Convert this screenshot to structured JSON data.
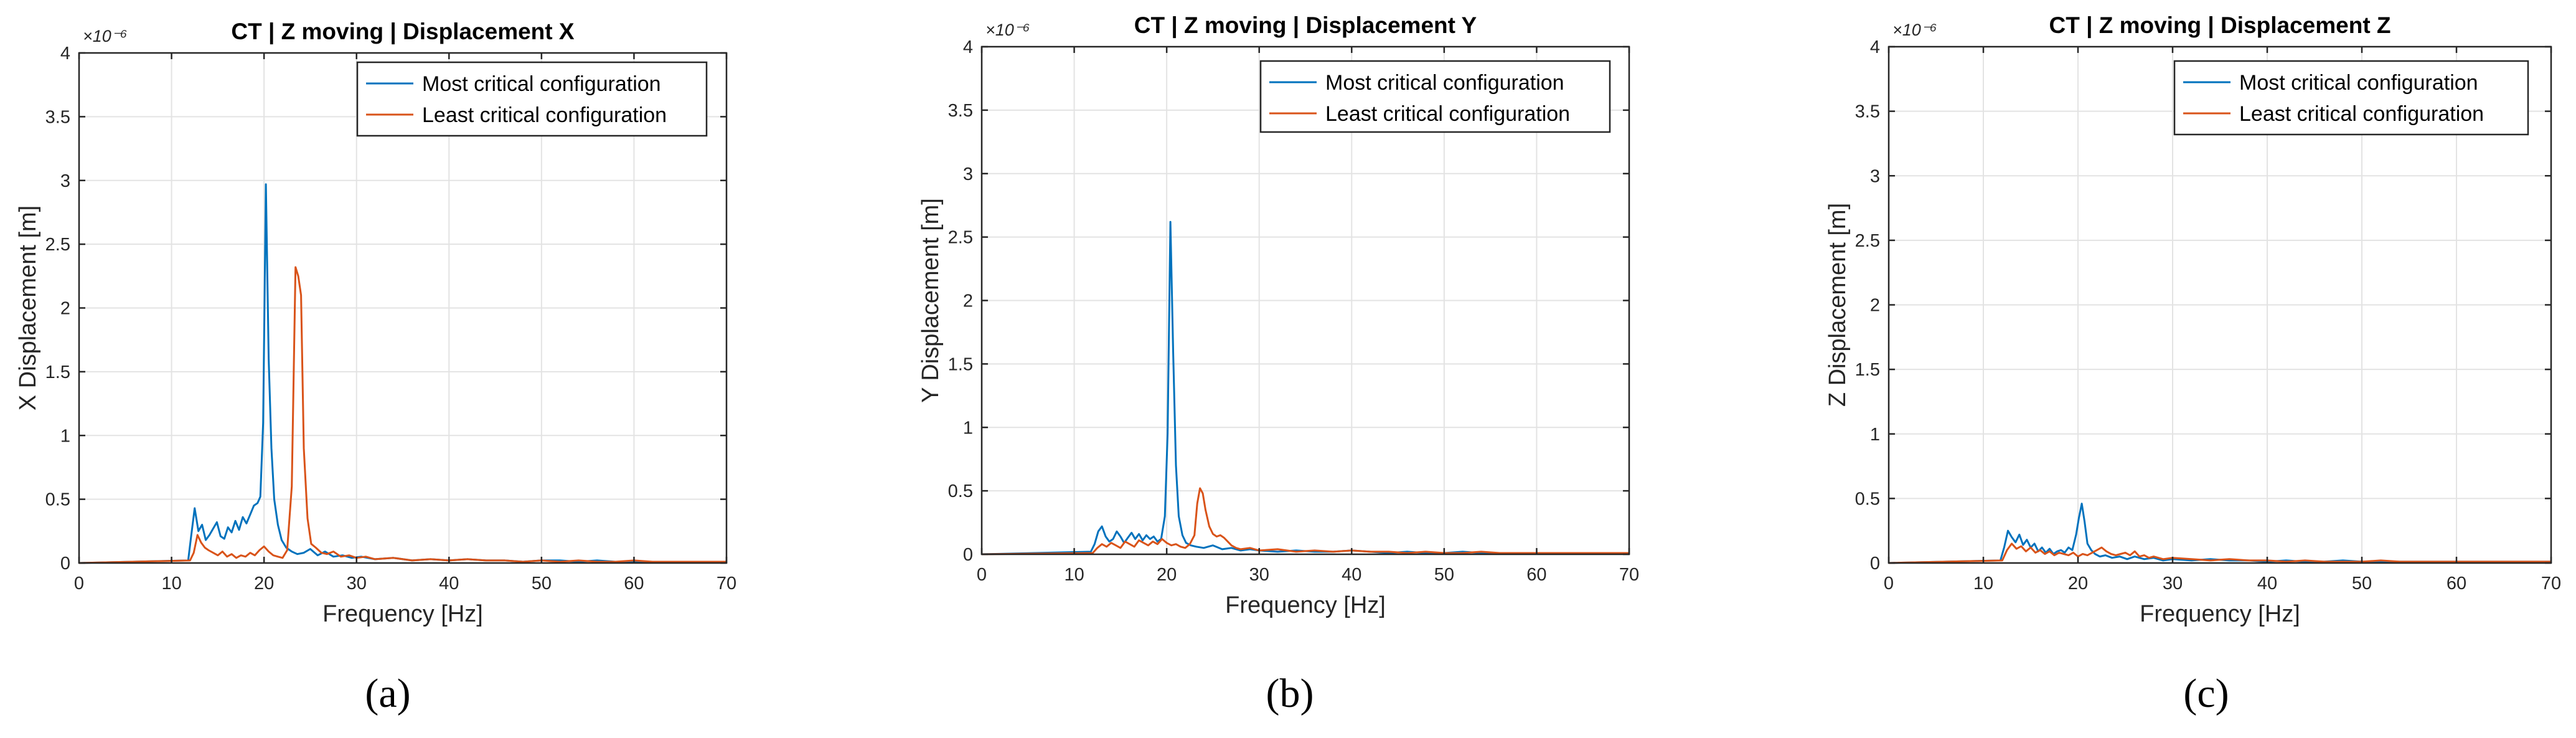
{
  "figure": {
    "panel_labels": [
      "(a)",
      "(b)",
      "(c)"
    ],
    "series_colors": [
      "#0072BD",
      "#D95319"
    ],
    "grid_color": "#e3e3e3",
    "axis_color": "#262626"
  },
  "chart_data": [
    {
      "type": "line",
      "title": "CT | Z moving | Displacement X",
      "xlabel": "Frequency [Hz]",
      "ylabel": "X Displacement [m]",
      "exponent_label": "×10⁻⁶",
      "xlim": [
        0,
        70
      ],
      "ylim": [
        0,
        4
      ],
      "xticks": [
        0,
        10,
        20,
        30,
        40,
        50,
        60,
        70
      ],
      "yticks": [
        0,
        0.5,
        1,
        1.5,
        2,
        2.5,
        3,
        3.5,
        4
      ],
      "ytick_labels": [
        "0",
        "0.5",
        "1",
        "1.5",
        "2",
        "2.5",
        "3",
        "3.5",
        "4"
      ],
      "grid": true,
      "legend": "top-right",
      "series": [
        {
          "name": "Most critical configuration",
          "x": [
            0,
            11.8,
            12.1,
            12.5,
            12.9,
            13.3,
            13.7,
            14.1,
            14.5,
            14.9,
            15.3,
            15.7,
            16.1,
            16.5,
            16.9,
            17.3,
            17.7,
            18.1,
            18.5,
            18.9,
            19.3,
            19.6,
            19.9,
            20.2,
            20.5,
            20.8,
            21.1,
            21.5,
            21.9,
            22.4,
            23.0,
            23.6,
            24.3,
            25.0,
            25.8,
            26.6,
            27.5,
            28.5,
            29.5,
            30.5,
            32,
            34,
            36,
            38,
            40,
            42,
            44,
            46,
            48,
            50,
            52,
            54,
            56,
            58,
            60,
            62,
            64,
            66,
            68,
            70
          ],
          "y": [
            0,
            0.02,
            0.2,
            0.43,
            0.25,
            0.3,
            0.18,
            0.22,
            0.27,
            0.32,
            0.21,
            0.19,
            0.28,
            0.24,
            0.33,
            0.26,
            0.36,
            0.31,
            0.38,
            0.45,
            0.47,
            0.52,
            1.1,
            2.97,
            1.6,
            0.9,
            0.5,
            0.3,
            0.18,
            0.12,
            0.09,
            0.07,
            0.08,
            0.11,
            0.06,
            0.09,
            0.05,
            0.06,
            0.04,
            0.05,
            0.03,
            0.04,
            0.02,
            0.03,
            0.02,
            0.03,
            0.02,
            0.02,
            0.01,
            0.02,
            0.02,
            0.01,
            0.02,
            0.01,
            0.01,
            0.01,
            0.01,
            0.01,
            0.01,
            0.01
          ]
        },
        {
          "name": "Least critical configuration",
          "x": [
            0,
            12.0,
            12.4,
            12.8,
            13.2,
            13.6,
            14.0,
            14.5,
            15.0,
            15.5,
            16.0,
            16.5,
            17.0,
            17.5,
            18.0,
            18.5,
            19.0,
            19.5,
            20.0,
            20.5,
            21.0,
            21.5,
            22.0,
            22.5,
            23.0,
            23.4,
            23.7,
            24.0,
            24.3,
            24.7,
            25.1,
            25.6,
            26.2,
            26.8,
            27.5,
            28.3,
            29.2,
            30.0,
            31,
            32,
            34,
            36,
            38,
            40,
            42,
            44,
            46,
            48,
            50,
            52,
            54,
            56,
            58,
            60,
            62,
            64,
            66,
            68,
            70
          ],
          "y": [
            0,
            0.02,
            0.08,
            0.22,
            0.16,
            0.12,
            0.1,
            0.08,
            0.06,
            0.09,
            0.05,
            0.07,
            0.04,
            0.06,
            0.05,
            0.08,
            0.06,
            0.1,
            0.13,
            0.09,
            0.06,
            0.05,
            0.04,
            0.1,
            0.6,
            2.32,
            2.25,
            2.1,
            0.9,
            0.35,
            0.15,
            0.12,
            0.08,
            0.07,
            0.09,
            0.05,
            0.06,
            0.04,
            0.05,
            0.03,
            0.04,
            0.02,
            0.03,
            0.02,
            0.03,
            0.02,
            0.02,
            0.01,
            0.02,
            0.01,
            0.02,
            0.01,
            0.01,
            0.02,
            0.01,
            0.01,
            0.01,
            0.01,
            0.01
          ]
        }
      ]
    },
    {
      "type": "line",
      "title": "CT | Z moving | Displacement Y",
      "xlabel": "Frequency [Hz]",
      "ylabel": "Y Displacement [m]",
      "exponent_label": "×10⁻⁶",
      "xlim": [
        0,
        70
      ],
      "ylim": [
        0,
        4
      ],
      "xticks": [
        0,
        10,
        20,
        30,
        40,
        50,
        60,
        70
      ],
      "yticks": [
        0,
        0.5,
        1,
        1.5,
        2,
        2.5,
        3,
        3.5,
        4
      ],
      "ytick_labels": [
        "0",
        "0.5",
        "1",
        "1.5",
        "2",
        "2.5",
        "3",
        "3.5",
        "4"
      ],
      "grid": true,
      "legend": "top-right",
      "series": [
        {
          "name": "Most critical configuration",
          "x": [
            0,
            11.8,
            12.2,
            12.6,
            13.0,
            13.4,
            13.8,
            14.2,
            14.6,
            15.0,
            15.4,
            15.8,
            16.2,
            16.6,
            17.0,
            17.4,
            17.8,
            18.2,
            18.6,
            19.0,
            19.4,
            19.8,
            20.1,
            20.4,
            20.7,
            21.0,
            21.3,
            21.7,
            22.1,
            22.6,
            23.2,
            24.0,
            25.0,
            26.0,
            27.0,
            28.0,
            29.0,
            30.0,
            32,
            34,
            36,
            38,
            40,
            42,
            44,
            46,
            48,
            50,
            52,
            54,
            56,
            58,
            60,
            62,
            64,
            66,
            68,
            70
          ],
          "y": [
            0,
            0.02,
            0.08,
            0.18,
            0.22,
            0.14,
            0.1,
            0.12,
            0.18,
            0.14,
            0.09,
            0.13,
            0.17,
            0.12,
            0.16,
            0.11,
            0.15,
            0.12,
            0.14,
            0.1,
            0.12,
            0.3,
            0.95,
            2.62,
            1.6,
            0.7,
            0.3,
            0.15,
            0.09,
            0.07,
            0.06,
            0.05,
            0.07,
            0.04,
            0.05,
            0.03,
            0.04,
            0.03,
            0.02,
            0.03,
            0.02,
            0.02,
            0.03,
            0.02,
            0.01,
            0.02,
            0.01,
            0.01,
            0.02,
            0.01,
            0.01,
            0.01,
            0.01,
            0.01,
            0.01,
            0.01,
            0.01,
            0.01
          ]
        },
        {
          "name": "Least critical configuration",
          "x": [
            0,
            12.0,
            12.5,
            13.0,
            13.5,
            14.0,
            14.5,
            15.0,
            15.5,
            16.0,
            16.5,
            17.0,
            17.5,
            18.0,
            18.5,
            19.0,
            19.5,
            20.0,
            20.5,
            21.0,
            21.5,
            22.0,
            22.5,
            23.0,
            23.3,
            23.6,
            23.9,
            24.2,
            24.6,
            25.0,
            25.4,
            25.8,
            26.2,
            26.6,
            27.0,
            27.5,
            28.0,
            29.0,
            30.0,
            32,
            34,
            36,
            38,
            40,
            42,
            44,
            46,
            48,
            50,
            52,
            54,
            56,
            58,
            60,
            62,
            64,
            66,
            68,
            70
          ],
          "y": [
            0,
            0.01,
            0.05,
            0.08,
            0.06,
            0.09,
            0.07,
            0.05,
            0.1,
            0.08,
            0.06,
            0.11,
            0.09,
            0.07,
            0.1,
            0.08,
            0.12,
            0.09,
            0.07,
            0.08,
            0.06,
            0.05,
            0.08,
            0.15,
            0.4,
            0.52,
            0.48,
            0.35,
            0.22,
            0.16,
            0.14,
            0.15,
            0.13,
            0.1,
            0.07,
            0.05,
            0.04,
            0.05,
            0.03,
            0.04,
            0.02,
            0.03,
            0.02,
            0.03,
            0.02,
            0.02,
            0.01,
            0.02,
            0.01,
            0.01,
            0.02,
            0.01,
            0.01,
            0.01,
            0.01,
            0.01,
            0.01,
            0.01,
            0.01
          ]
        }
      ]
    },
    {
      "type": "line",
      "title": "CT | Z moving | Displacement Z",
      "xlabel": "Frequency [Hz]",
      "ylabel": "Z Displacement [m]",
      "exponent_label": "×10⁻⁶",
      "xlim": [
        0,
        70
      ],
      "ylim": [
        0,
        4
      ],
      "xticks": [
        0,
        10,
        20,
        30,
        40,
        50,
        60,
        70
      ],
      "yticks": [
        0,
        0.5,
        1,
        1.5,
        2,
        2.5,
        3,
        3.5,
        4
      ],
      "ytick_labels": [
        "0",
        "0.5",
        "1",
        "1.5",
        "2",
        "2.5",
        "3",
        "3.5",
        "4"
      ],
      "grid": true,
      "legend": "top-right",
      "series": [
        {
          "name": "Most critical configuration",
          "x": [
            0,
            11.8,
            12.2,
            12.6,
            13.0,
            13.4,
            13.8,
            14.2,
            14.6,
            15.0,
            15.4,
            15.8,
            16.2,
            16.6,
            17.0,
            17.4,
            17.8,
            18.2,
            18.6,
            19.0,
            19.4,
            19.8,
            20.1,
            20.4,
            20.7,
            21.0,
            21.4,
            21.8,
            22.3,
            22.9,
            23.6,
            24.4,
            25.2,
            26.0,
            27.0,
            28.0,
            29.0,
            30.0,
            32,
            34,
            36,
            38,
            40,
            42,
            44,
            46,
            48,
            50,
            52,
            54,
            56,
            58,
            60,
            62,
            64,
            66,
            68,
            70
          ],
          "y": [
            0,
            0.02,
            0.12,
            0.25,
            0.2,
            0.16,
            0.22,
            0.14,
            0.18,
            0.12,
            0.15,
            0.09,
            0.12,
            0.08,
            0.11,
            0.07,
            0.09,
            0.1,
            0.08,
            0.12,
            0.1,
            0.22,
            0.35,
            0.46,
            0.32,
            0.15,
            0.1,
            0.07,
            0.05,
            0.06,
            0.04,
            0.05,
            0.03,
            0.05,
            0.03,
            0.04,
            0.02,
            0.03,
            0.02,
            0.03,
            0.02,
            0.02,
            0.01,
            0.02,
            0.01,
            0.01,
            0.02,
            0.01,
            0.01,
            0.01,
            0.01,
            0.01,
            0.01,
            0.01,
            0.01,
            0.01,
            0.01,
            0.01
          ]
        },
        {
          "name": "Least critical configuration",
          "x": [
            0,
            12.0,
            12.5,
            13.0,
            13.5,
            14.0,
            14.5,
            15.0,
            15.5,
            16.0,
            16.5,
            17.0,
            17.5,
            18.0,
            18.5,
            19.0,
            19.5,
            20.0,
            20.5,
            21.0,
            21.5,
            22.0,
            22.5,
            23.0,
            23.5,
            24.0,
            24.5,
            25.0,
            25.5,
            26.0,
            26.5,
            27.0,
            27.5,
            28.0,
            29.0,
            30.0,
            32,
            34,
            36,
            38,
            40,
            42,
            44,
            46,
            48,
            50,
            52,
            54,
            56,
            58,
            60,
            62,
            64,
            66,
            68,
            70
          ],
          "y": [
            0,
            0.02,
            0.1,
            0.15,
            0.11,
            0.13,
            0.09,
            0.12,
            0.08,
            0.1,
            0.07,
            0.09,
            0.06,
            0.08,
            0.07,
            0.06,
            0.08,
            0.05,
            0.07,
            0.06,
            0.08,
            0.1,
            0.12,
            0.09,
            0.07,
            0.06,
            0.07,
            0.08,
            0.06,
            0.09,
            0.05,
            0.06,
            0.04,
            0.05,
            0.03,
            0.04,
            0.03,
            0.02,
            0.03,
            0.02,
            0.02,
            0.01,
            0.02,
            0.01,
            0.01,
            0.01,
            0.02,
            0.01,
            0.01,
            0.01,
            0.01,
            0.01,
            0.01,
            0.01,
            0.01,
            0.01
          ]
        }
      ]
    }
  ]
}
